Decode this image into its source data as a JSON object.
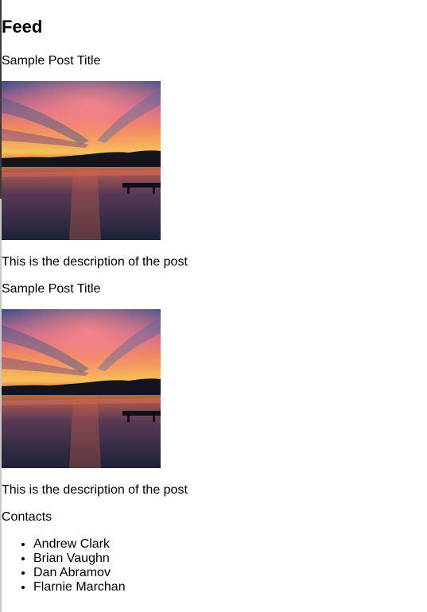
{
  "feed": {
    "title": "Feed",
    "posts": [
      {
        "title": "Sample Post Title",
        "image_alt": "sunset-over-lake",
        "description": "This is the description of the post"
      },
      {
        "title": "Sample Post Title",
        "image_alt": "sunset-over-lake",
        "description": "This is the description of the post"
      }
    ]
  },
  "contacts": {
    "title": "Contacts",
    "items": [
      "Andrew Clark",
      "Brian Vaughn",
      "Dan Abramov",
      "Flarnie Marchan"
    ]
  }
}
